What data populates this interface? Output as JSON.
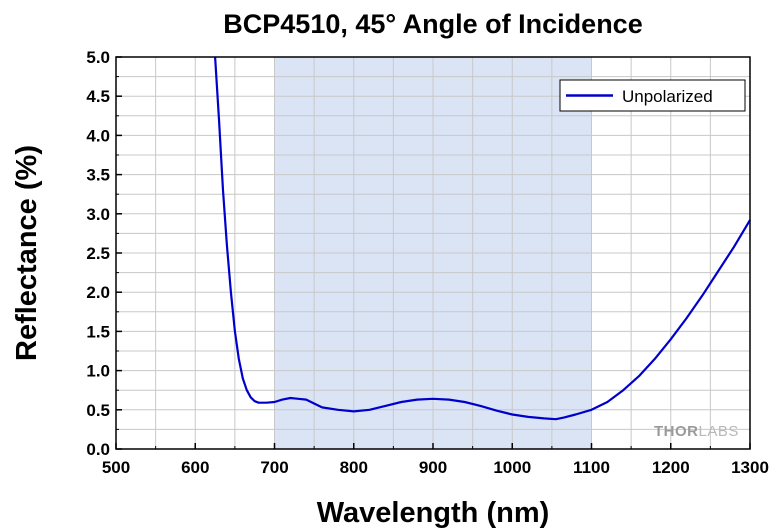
{
  "chart_data": {
    "type": "line",
    "title": "BCP4510, 45° Angle of Incidence",
    "xlabel": "Wavelength (nm)",
    "ylabel": "Reflectance (%)",
    "xlim": [
      500,
      1300
    ],
    "ylim": [
      0,
      5
    ],
    "x_ticks": [
      "500",
      "600",
      "700",
      "800",
      "900",
      "1000",
      "1100",
      "1200",
      "1300"
    ],
    "y_ticks": [
      "0.0",
      "0.5",
      "1.0",
      "1.5",
      "2.0",
      "2.5",
      "3.0",
      "3.5",
      "4.0",
      "4.5",
      "5.0"
    ],
    "grid": true,
    "legend_position": "top-right",
    "highlight_band": {
      "x_start": 700,
      "x_end": 1100,
      "color": "#dbe4f5"
    },
    "series": [
      {
        "name": "Unpolarized",
        "color": "#0000cc",
        "x": [
          625,
          630,
          635,
          640,
          645,
          650,
          655,
          660,
          665,
          670,
          675,
          680,
          690,
          700,
          710,
          720,
          730,
          740,
          750,
          760,
          780,
          800,
          820,
          840,
          860,
          880,
          900,
          920,
          940,
          960,
          980,
          1000,
          1020,
          1040,
          1055,
          1065,
          1080,
          1100,
          1120,
          1140,
          1160,
          1180,
          1200,
          1220,
          1240,
          1260,
          1280,
          1300
        ],
        "values": [
          5.0,
          4.2,
          3.3,
          2.6,
          2.0,
          1.5,
          1.15,
          0.9,
          0.75,
          0.66,
          0.61,
          0.59,
          0.59,
          0.6,
          0.63,
          0.65,
          0.64,
          0.63,
          0.58,
          0.53,
          0.5,
          0.48,
          0.5,
          0.55,
          0.6,
          0.63,
          0.64,
          0.63,
          0.6,
          0.55,
          0.49,
          0.44,
          0.41,
          0.39,
          0.38,
          0.4,
          0.44,
          0.5,
          0.6,
          0.75,
          0.93,
          1.15,
          1.4,
          1.67,
          1.96,
          2.27,
          2.58,
          2.92
        ]
      }
    ]
  },
  "watermark": {
    "part1": "THOR",
    "part2": "LABS"
  }
}
